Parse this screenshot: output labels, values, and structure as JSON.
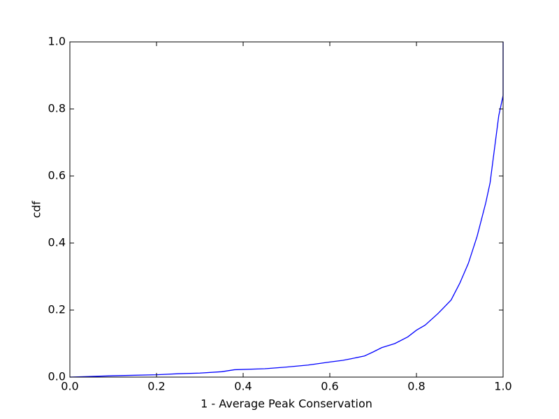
{
  "chart_data": {
    "type": "line",
    "xlabel": "1 - Average Peak Conservation",
    "ylabel": "cdf",
    "x": [
      0,
      0.1,
      0.2,
      0.25,
      0.3,
      0.35,
      0.38,
      0.45,
      0.5,
      0.55,
      0.6,
      0.63,
      0.65,
      0.68,
      0.7,
      0.72,
      0.75,
      0.78,
      0.8,
      0.82,
      0.85,
      0.88,
      0.9,
      0.92,
      0.94,
      0.96,
      0.97,
      0.98,
      0.99,
      1.0,
      1.0
    ],
    "values": [
      0,
      0.004,
      0.007,
      0.01,
      0.012,
      0.016,
      0.022,
      0.025,
      0.03,
      0.036,
      0.045,
      0.05,
      0.055,
      0.063,
      0.075,
      0.088,
      0.1,
      0.12,
      0.14,
      0.155,
      0.19,
      0.23,
      0.28,
      0.34,
      0.42,
      0.52,
      0.58,
      0.68,
      0.78,
      0.84,
      1.0
    ],
    "color": "#0000ff",
    "xlim": [
      0,
      1
    ],
    "ylim": [
      0,
      1
    ],
    "xticks": [
      {
        "value": 0,
        "label": "0.0"
      },
      0.2,
      0.4,
      0.6,
      0.8,
      {
        "value": 1,
        "label": "1.0"
      }
    ],
    "yticks": [
      {
        "value": 0,
        "label": "0.0"
      },
      0.2,
      0.4,
      0.6,
      0.8,
      {
        "value": 1,
        "label": "1.0"
      }
    ]
  }
}
